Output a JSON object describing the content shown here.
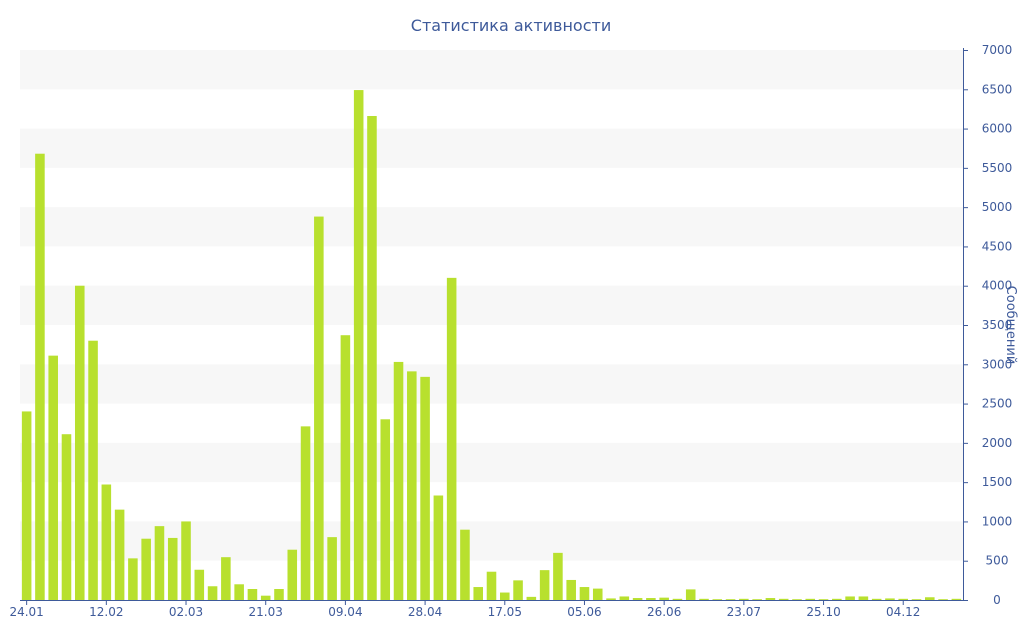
{
  "chart_data": {
    "type": "bar",
    "title": "Статистика активности",
    "ylabel": "Сообщений",
    "xlabel": "",
    "ylim": [
      0,
      7000
    ],
    "y_ticks": [
      0,
      500,
      1000,
      1500,
      2000,
      2500,
      3000,
      3500,
      4000,
      4500,
      5000,
      5500,
      6000,
      6500,
      7000
    ],
    "y_axis_side": "right",
    "x_tick_labels": [
      {
        "label": "24.01",
        "index": 0
      },
      {
        "label": "12.02",
        "index": 6
      },
      {
        "label": "02.03",
        "index": 12
      },
      {
        "label": "21.03",
        "index": 18
      },
      {
        "label": "09.04",
        "index": 24
      },
      {
        "label": "28.04",
        "index": 30
      },
      {
        "label": "17.05",
        "index": 36
      },
      {
        "label": "05.06",
        "index": 42
      },
      {
        "label": "26.06",
        "index": 48
      },
      {
        "label": "23.07",
        "index": 54
      },
      {
        "label": "25.10",
        "index": 60
      },
      {
        "label": "04.12",
        "index": 66
      }
    ],
    "bar_color": "#b8e02e",
    "band_color": "#f7f7f7",
    "axis_color": "#3e5a9a",
    "series": [
      {
        "values": [
          2400,
          5680,
          3110,
          2110,
          4000,
          3300,
          1470,
          1150,
          530,
          780,
          940,
          790,
          1000,
          385,
          175,
          545,
          200,
          140,
          55,
          140,
          640,
          2210,
          4880,
          800,
          3370,
          6490,
          6160,
          2300,
          3030,
          2910,
          2840,
          1330,
          4100,
          895,
          165,
          360,
          95,
          250,
          40,
          380,
          600,
          255,
          165,
          145,
          20,
          45,
          25,
          25,
          30,
          15,
          135,
          15,
          10,
          10,
          15,
          10,
          25,
          15,
          10,
          15,
          10,
          15,
          45,
          45,
          15,
          20,
          15,
          10,
          35,
          10,
          15
        ]
      }
    ]
  }
}
